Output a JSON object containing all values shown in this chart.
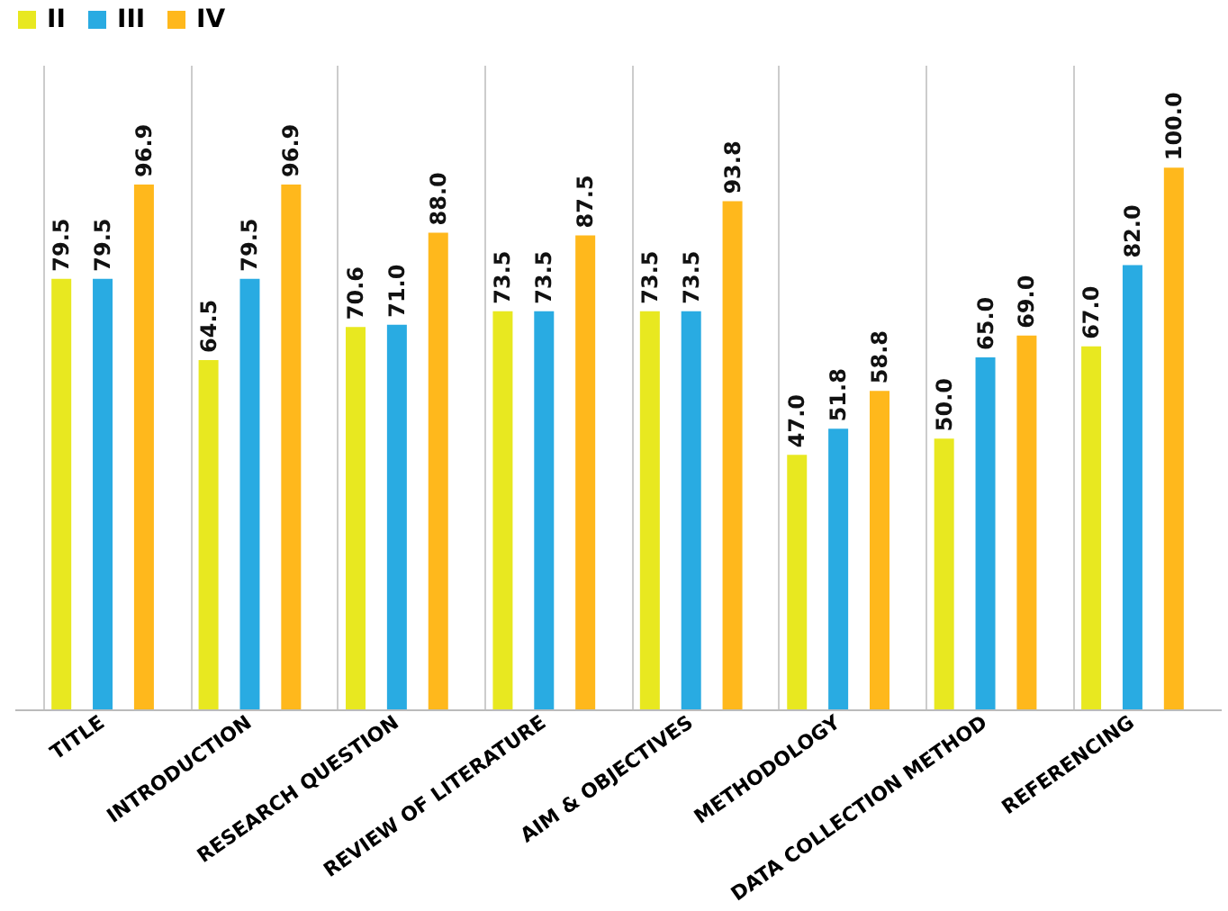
{
  "chart_data": {
    "type": "bar",
    "categories": [
      "TITLE",
      "INTRODUCTION",
      "RESEARCH QUESTION",
      "REVIEW OF LITERATURE",
      "AIM & OBJECTIVES",
      "METHODOLOGY",
      "DATA COLLECTION METHOD",
      "REFERENCING"
    ],
    "series": [
      {
        "name": "II",
        "color": "#e8e820",
        "values": [
          79.5,
          64.5,
          70.6,
          73.5,
          73.5,
          47.0,
          50.0,
          67.0
        ],
        "value_labels": [
          "79.5",
          "64.5",
          "70.6",
          "73.5",
          "73.5",
          "47.0",
          "50.0",
          "67.0"
        ]
      },
      {
        "name": "III",
        "color": "#29abe2",
        "values": [
          79.5,
          79.5,
          71.0,
          73.5,
          73.5,
          51.8,
          65.0,
          82.0
        ],
        "value_labels": [
          "79.5",
          "79.5",
          "71.0",
          "73.5",
          "73.5",
          "51.8",
          "65.0",
          "82.0"
        ]
      },
      {
        "name": "IV",
        "color": "#ffb81c",
        "values": [
          96.9,
          96.9,
          88.0,
          87.5,
          93.8,
          58.8,
          69.0,
          100.0
        ],
        "value_labels": [
          "96.9",
          "96.9",
          "88.0",
          "87.5",
          "93.8",
          "58.8",
          "69.0",
          "100.0"
        ]
      }
    ],
    "ylim": [
      0,
      119
    ],
    "tick_labels": "x",
    "grid": "x",
    "legend": "top"
  }
}
